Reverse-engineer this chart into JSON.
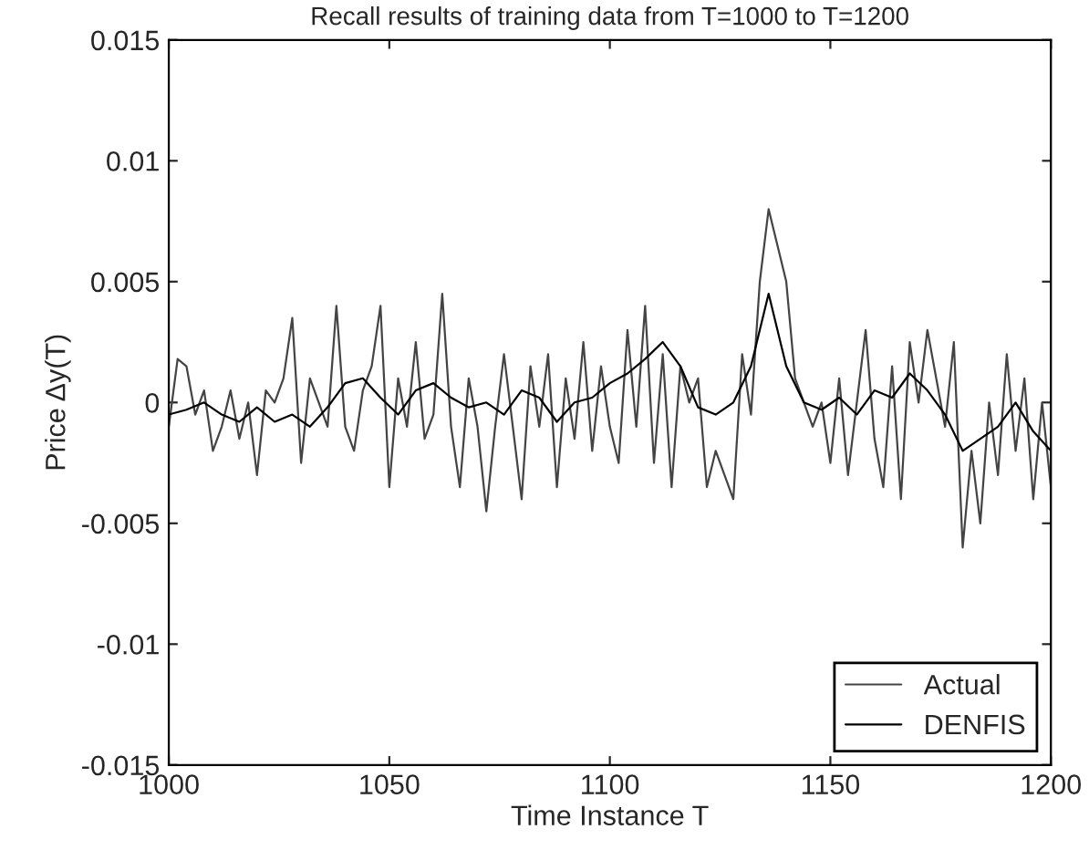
{
  "chart_data": {
    "type": "line",
    "title": "Recall results of training data from T=1000 to T=1200",
    "xlabel": "Time Instance T",
    "ylabel": "Price Δy(T)",
    "xlim": [
      1000,
      1200
    ],
    "xticks": [
      1000,
      1050,
      1100,
      1150,
      1200
    ],
    "ylim": [
      -0.015,
      0.015
    ],
    "yticks": [
      -0.015,
      -0.01,
      -0.005,
      0,
      0.005,
      0.01,
      0.015
    ],
    "grid": false,
    "legend": "bottom right",
    "marker": "none",
    "line_style": "solid",
    "series": [
      {
        "name": "Actual",
        "color": "#444444",
        "x": [
          1000,
          1002,
          1004,
          1006,
          1008,
          1010,
          1012,
          1014,
          1016,
          1018,
          1020,
          1022,
          1024,
          1026,
          1028,
          1030,
          1032,
          1034,
          1036,
          1038,
          1040,
          1042,
          1044,
          1046,
          1048,
          1050,
          1052,
          1054,
          1056,
          1058,
          1060,
          1062,
          1064,
          1066,
          1068,
          1070,
          1072,
          1074,
          1076,
          1078,
          1080,
          1082,
          1084,
          1086,
          1088,
          1090,
          1092,
          1094,
          1096,
          1098,
          1100,
          1102,
          1104,
          1106,
          1108,
          1110,
          1112,
          1114,
          1116,
          1118,
          1120,
          1122,
          1124,
          1126,
          1128,
          1130,
          1132,
          1134,
          1136,
          1138,
          1140,
          1142,
          1144,
          1146,
          1148,
          1150,
          1152,
          1154,
          1156,
          1158,
          1160,
          1162,
          1164,
          1166,
          1168,
          1170,
          1172,
          1174,
          1176,
          1178,
          1180,
          1182,
          1184,
          1186,
          1188,
          1190,
          1192,
          1194,
          1196,
          1198,
          1200
        ],
        "values": [
          -0.001,
          0.0018,
          0.0015,
          -0.0005,
          0.0005,
          -0.002,
          -0.001,
          0.0005,
          -0.0015,
          0,
          -0.003,
          0.0005,
          0,
          0.001,
          0.0035,
          -0.0025,
          0.001,
          0,
          -0.001,
          0.004,
          -0.001,
          -0.002,
          0.0005,
          0.0015,
          0.004,
          -0.0035,
          0.001,
          -0.001,
          0.0025,
          -0.0015,
          -0.0005,
          0.0045,
          -0.001,
          -0.0035,
          0.001,
          -0.001,
          -0.0045,
          -0.001,
          0.002,
          -0.001,
          -0.004,
          0.0015,
          -0.001,
          0.002,
          -0.0035,
          0.001,
          -0.0015,
          0.0025,
          -0.002,
          0.0015,
          -0.001,
          -0.0025,
          0.003,
          -0.001,
          0.004,
          -0.0025,
          0.002,
          -0.0035,
          0.0015,
          0,
          0.001,
          -0.0035,
          -0.002,
          -0.003,
          -0.004,
          0.002,
          -0.0005,
          0.005,
          0.008,
          0.0065,
          0.005,
          0.001,
          0,
          -0.001,
          0,
          -0.0025,
          0.001,
          -0.003,
          0,
          0.003,
          -0.0015,
          -0.0035,
          0.0015,
          -0.004,
          0.0025,
          0,
          0.003,
          0.001,
          -0.001,
          0.0025,
          -0.006,
          -0.002,
          -0.005,
          0,
          -0.003,
          0.002,
          -0.002,
          0.001,
          -0.004,
          0,
          -0.0035
        ]
      },
      {
        "name": "DENFIS",
        "color": "#000000",
        "x": [
          1000,
          1004,
          1008,
          1012,
          1016,
          1020,
          1024,
          1028,
          1032,
          1036,
          1040,
          1044,
          1048,
          1052,
          1056,
          1060,
          1064,
          1068,
          1072,
          1076,
          1080,
          1084,
          1088,
          1092,
          1096,
          1100,
          1104,
          1108,
          1112,
          1116,
          1120,
          1124,
          1128,
          1132,
          1136,
          1140,
          1144,
          1148,
          1152,
          1156,
          1160,
          1164,
          1168,
          1172,
          1176,
          1180,
          1184,
          1188,
          1192,
          1196,
          1200
        ],
        "values": [
          -0.0005,
          -0.0003,
          0,
          -0.0005,
          -0.0008,
          -0.0002,
          -0.0008,
          -0.0005,
          -0.001,
          -0.0002,
          0.0008,
          0.001,
          0.0002,
          -0.0005,
          0.0005,
          0.0008,
          0.0002,
          -0.0002,
          0,
          -0.0005,
          0.0005,
          0.0002,
          -0.0008,
          0,
          0.0002,
          0.0008,
          0.0012,
          0.0018,
          0.0025,
          0.0015,
          -0.0002,
          -0.0005,
          0,
          0.0015,
          0.0045,
          0.0015,
          0,
          -0.0003,
          0.0002,
          -0.0005,
          0.0005,
          0.0002,
          0.0012,
          0.0005,
          -0.0005,
          -0.002,
          -0.0015,
          -0.001,
          0,
          -0.0012,
          -0.002
        ]
      }
    ]
  }
}
